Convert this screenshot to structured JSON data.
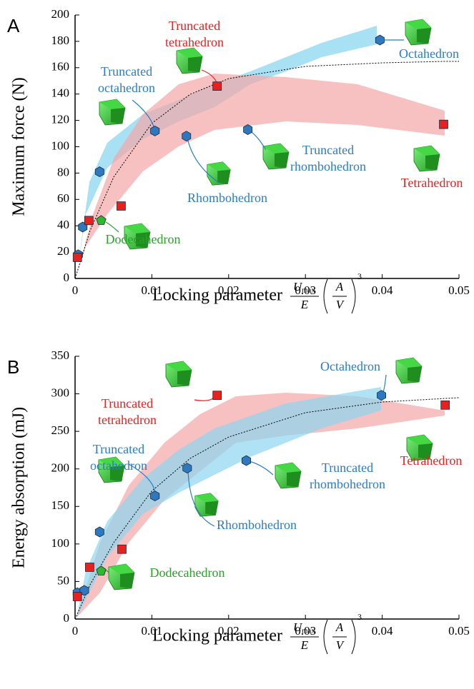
{
  "chart_data": [
    {
      "type": "scatter",
      "panel": "A",
      "ylabel": "Maximum force (N)",
      "xlabel": "Locking parameter",
      "xlabel_formula": {
        "numerator": "U",
        "numerator_sub": "max",
        "denominator": "E",
        "paren_numerator": "A",
        "paren_denominator": "V",
        "exponent": "3"
      },
      "xlim": [
        0,
        0.05
      ],
      "xticks": [
        0,
        0.01,
        0.02,
        0.03,
        0.04,
        0.05
      ],
      "ylim": [
        0,
        200
      ],
      "yticks": [
        0,
        20,
        40,
        60,
        80,
        100,
        120,
        140,
        160,
        180,
        200
      ],
      "series": [
        {
          "color": "#2e78c0",
          "marker": "hexagon",
          "x": [
            0.0004,
            0.001,
            0.0032,
            0.0104,
            0.0145,
            0.0225,
            0.0397
          ],
          "values": [
            18,
            39,
            81,
            112,
            108,
            113,
            181
          ]
        },
        {
          "color": "#e8201f",
          "marker": "square",
          "x": [
            0.0003,
            0.0018,
            0.006,
            0.0185,
            0.048
          ],
          "values": [
            16,
            44,
            55,
            146,
            117
          ]
        },
        {
          "color": "#2db82d",
          "marker": "pentagon",
          "x": [
            0.0034
          ],
          "values": [
            44
          ]
        }
      ],
      "annotations": [
        {
          "text": [
            "Truncated",
            "tetrahedron"
          ],
          "color": "#e8201f"
        },
        {
          "text": [
            "Octahedron"
          ],
          "color": "#2a7cc7"
        },
        {
          "text": [
            "Truncated",
            "octahedron"
          ],
          "color": "#2a7cc7"
        },
        {
          "text": [
            "Rhombohedron"
          ],
          "color": "#2a7cc7"
        },
        {
          "text": [
            "Truncated",
            "rhombohedron"
          ],
          "color": "#2a7cc7"
        },
        {
          "text": [
            "Tetrahedron"
          ],
          "color": "#e8201f"
        },
        {
          "text": [
            "Dodecahedron"
          ],
          "color": "#2aa02a"
        }
      ]
    },
    {
      "type": "scatter",
      "panel": "B",
      "ylabel": "Energy absorption (mJ)",
      "xlabel": "Locking parameter",
      "xlabel_formula": {
        "numerator": "U",
        "numerator_sub": "max",
        "denominator": "E",
        "paren_numerator": "A",
        "paren_denominator": "V",
        "exponent": "3"
      },
      "xlim": [
        0,
        0.05
      ],
      "xticks": [
        0,
        0.01,
        0.02,
        0.03,
        0.04,
        0.05
      ],
      "ylim": [
        0,
        350
      ],
      "yticks": [
        0,
        50,
        100,
        150,
        200,
        250,
        300,
        350
      ],
      "series": [
        {
          "color": "#2e78c0",
          "marker": "hexagon",
          "x": [
            0.0003,
            0.0012,
            0.0032,
            0.0104,
            0.0146,
            0.0223,
            0.0399
          ],
          "values": [
            35,
            38,
            116,
            164,
            201,
            211,
            298
          ]
        },
        {
          "color": "#e8201f",
          "marker": "square",
          "x": [
            0.0003,
            0.0019,
            0.0061,
            0.0185,
            0.0482
          ],
          "values": [
            30,
            69,
            93,
            298,
            285
          ]
        },
        {
          "color": "#2db82d",
          "marker": "pentagon",
          "x": [
            0.0034
          ],
          "values": [
            64
          ]
        }
      ],
      "annotations": [
        {
          "text": [
            "Truncated",
            "tetrahedron"
          ],
          "color": "#e8201f"
        },
        {
          "text": [
            "Octahedron"
          ],
          "color": "#2a7cc7"
        },
        {
          "text": [
            "Truncated",
            "octahedron"
          ],
          "color": "#2a7cc7"
        },
        {
          "text": [
            "Rhombohedron"
          ],
          "color": "#2a7cc7"
        },
        {
          "text": [
            "Truncated",
            "rhombohedron"
          ],
          "color": "#2a7cc7"
        },
        {
          "text": [
            "Tetrahedron"
          ],
          "color": "#e8201f"
        },
        {
          "text": [
            "Dodecahedron"
          ],
          "color": "#2aa02a"
        }
      ]
    }
  ]
}
